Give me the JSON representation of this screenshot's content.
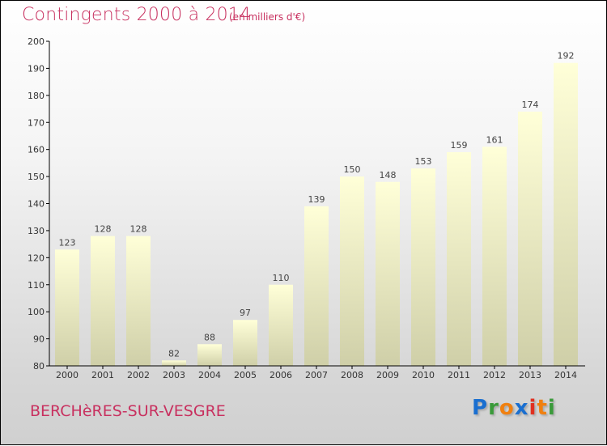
{
  "header": {
    "title": "Contingents 2000 à 2014",
    "subtitle": "(en milliers d'€)"
  },
  "footer": {
    "commune": "BERCHèRES-SUR-VESGRE",
    "logo": "Proxiti"
  },
  "colors": {
    "title": "#c8305f",
    "bar_top": "#ffffd8",
    "bar_bottom": "#cfcfa8"
  },
  "chart_data": {
    "type": "bar",
    "title": "Contingents 2000 à 2014",
    "subtitle": "(en milliers d'€)",
    "categories": [
      "2000",
      "2001",
      "2002",
      "2003",
      "2004",
      "2005",
      "2006",
      "2007",
      "2008",
      "2009",
      "2010",
      "2011",
      "2012",
      "2013",
      "2014"
    ],
    "values": [
      123,
      128,
      128,
      82,
      88,
      97,
      110,
      139,
      150,
      148,
      153,
      159,
      161,
      174,
      192
    ],
    "ylim": [
      80,
      200
    ],
    "yticks": [
      80,
      90,
      100,
      110,
      120,
      130,
      140,
      150,
      160,
      170,
      180,
      190,
      200
    ],
    "xlabel": "",
    "ylabel": "",
    "grid": false,
    "legend": "none"
  }
}
